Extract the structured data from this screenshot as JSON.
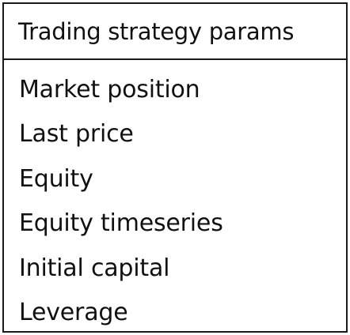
{
  "box": {
    "title": "Trading strategy params",
    "items": [
      "Market position",
      "Last price",
      "Equity",
      "Equity timeseries",
      "Initial capital",
      "Leverage"
    ]
  }
}
